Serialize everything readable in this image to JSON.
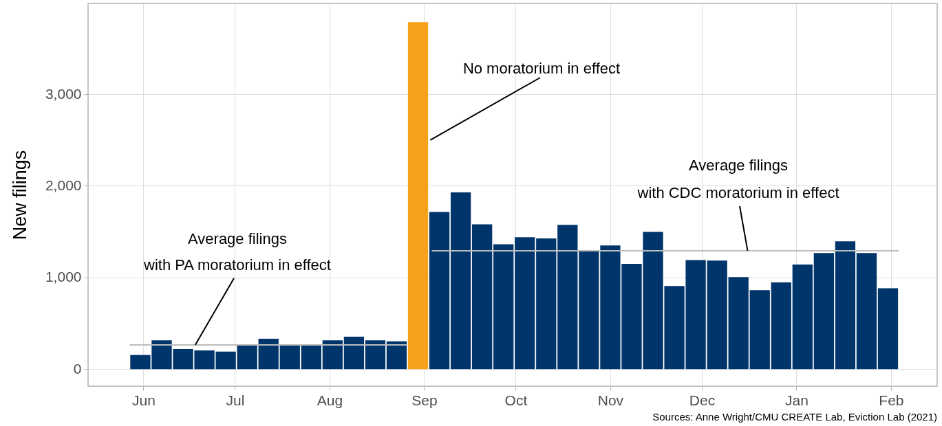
{
  "chart_data": {
    "type": "bar",
    "ylabel": "New filings",
    "x": [
      "2020-05-31",
      "2020-06-07",
      "2020-06-14",
      "2020-06-21",
      "2020-06-28",
      "2020-07-05",
      "2020-07-12",
      "2020-07-19",
      "2020-07-26",
      "2020-08-02",
      "2020-08-09",
      "2020-08-16",
      "2020-08-23",
      "2020-08-30",
      "2020-09-06",
      "2020-09-13",
      "2020-09-20",
      "2020-09-27",
      "2020-10-04",
      "2020-10-11",
      "2020-10-18",
      "2020-10-25",
      "2020-11-01",
      "2020-11-08",
      "2020-11-15",
      "2020-11-22",
      "2020-11-29",
      "2020-12-06",
      "2020-12-13",
      "2020-12-20",
      "2020-12-27",
      "2021-01-03",
      "2021-01-10",
      "2021-01-17",
      "2021-01-24",
      "2021-01-31"
    ],
    "series": [
      {
        "values": [
          155,
          315,
          220,
          205,
          192,
          265,
          333,
          265,
          258,
          315,
          355,
          315,
          305,
          3785,
          1716,
          1929,
          1581,
          1363,
          1439,
          1426,
          1574,
          1288,
          1350,
          1150,
          1498,
          908,
          1191,
          1184,
          1005,
          862,
          946,
          1142,
          1267,
          1395,
          1267,
          883
        ],
        "colors": [
          "#00356b",
          "#00356b",
          "#00356b",
          "#00356b",
          "#00356b",
          "#00356b",
          "#00356b",
          "#00356b",
          "#00356b",
          "#00356b",
          "#00356b",
          "#00356b",
          "#00356b",
          "#f5a11c",
          "#00356b",
          "#00356b",
          "#00356b",
          "#00356b",
          "#00356b",
          "#00356b",
          "#00356b",
          "#00356b",
          "#00356b",
          "#00356b",
          "#00356b",
          "#00356b",
          "#00356b",
          "#00356b",
          "#00356b",
          "#00356b",
          "#00356b",
          "#00356b",
          "#00356b",
          "#00356b",
          "#00356b",
          "#00356b"
        ]
      },
      {
        "type": "line",
        "x": [
          "2020-05-27T12:00",
          "2020-08-26T12:00"
        ],
        "values": [
          265,
          265
        ],
        "color": "#bdbdbd"
      },
      {
        "type": "line",
        "x": [
          "2020-09-03T12:00",
          "2021-02-03T12:00"
        ],
        "values": [
          1292,
          1292
        ],
        "color": "#bdbdbd"
      }
    ],
    "xlim": [
      "2020-05-15",
      "2021-02-15"
    ],
    "xticks": [
      {
        "value": "2020-06-01",
        "label": "Jun"
      },
      {
        "value": "2020-07-01",
        "label": "Jul"
      },
      {
        "value": "2020-08-01",
        "label": "Aug"
      },
      {
        "value": "2020-09-01",
        "label": "Sep"
      },
      {
        "value": "2020-10-01",
        "label": "Oct"
      },
      {
        "value": "2020-11-01",
        "label": "Nov"
      },
      {
        "value": "2020-12-01",
        "label": "Dec"
      },
      {
        "value": "2021-01-01",
        "label": "Jan"
      },
      {
        "value": "2021-02-01",
        "label": "Feb"
      }
    ],
    "ylim": [
      -185,
      3990
    ],
    "yticks": [
      0,
      {
        "value": 1000,
        "label": "1,000"
      },
      {
        "value": 2000,
        "label": "2,000"
      },
      {
        "value": 3000,
        "label": "3,000"
      }
    ],
    "grid": true,
    "annotations": [
      {
        "text": "Average filings\nwith PA moratorium in effect",
        "x": "2020-06-18",
        "y": 265
      },
      {
        "text": "No moratorium in effect",
        "x": "2020-09-03",
        "y": 2500
      },
      {
        "text": "Average filings\nwith CDC moratorium in effect",
        "x": "2020-12-16",
        "y": 1292
      },
      "Sources: Anne Wright/CMU CREATE Lab, Eviction Lab (2021)"
    ]
  }
}
